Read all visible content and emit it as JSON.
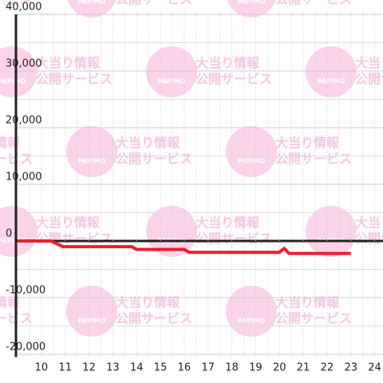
{
  "chart_data": {
    "type": "line",
    "x": [
      9,
      10.4,
      10.9,
      13.8,
      14.0,
      16.0,
      16.2,
      20.0,
      20.2,
      20.4,
      23.0
    ],
    "series": [
      {
        "color": "#e8202f",
        "values": [
          0,
          0,
          -1000,
          -1000,
          -1500,
          -1500,
          -2000,
          -2000,
          -1300,
          -2200,
          -2200
        ]
      }
    ],
    "xlim": [
      8.93,
      24.35
    ],
    "xticks": [
      10,
      11,
      12,
      13,
      14,
      15,
      16,
      17,
      18,
      19,
      20,
      21,
      22,
      23,
      24
    ],
    "x_minor_grid": [
      9.5,
      10.5,
      11.5,
      12.5,
      13.5,
      14.5,
      15.5,
      16.5,
      17.5,
      18.5,
      19.5,
      20.5,
      21.5,
      22.5,
      23.5
    ],
    "ylim": [
      -20500,
      40300
    ],
    "yticks": [
      {
        "value": -20000,
        "label": "-20,000"
      },
      {
        "value": -10000,
        "label": "-10,000"
      },
      0,
      {
        "value": 10000,
        "label": "10,000"
      },
      {
        "value": 20000,
        "label": "20,000"
      },
      {
        "value": 30000,
        "label": "30,000"
      },
      {
        "value": 40000,
        "label": "40,000"
      }
    ],
    "y_minor_grid": [
      -15000,
      -5000,
      5000,
      15000,
      25000,
      35000
    ],
    "grid": true
  },
  "watermark": {
    "logo": "PAPIMO",
    "line1": "大当り情報",
    "line2": "公開サービス"
  }
}
